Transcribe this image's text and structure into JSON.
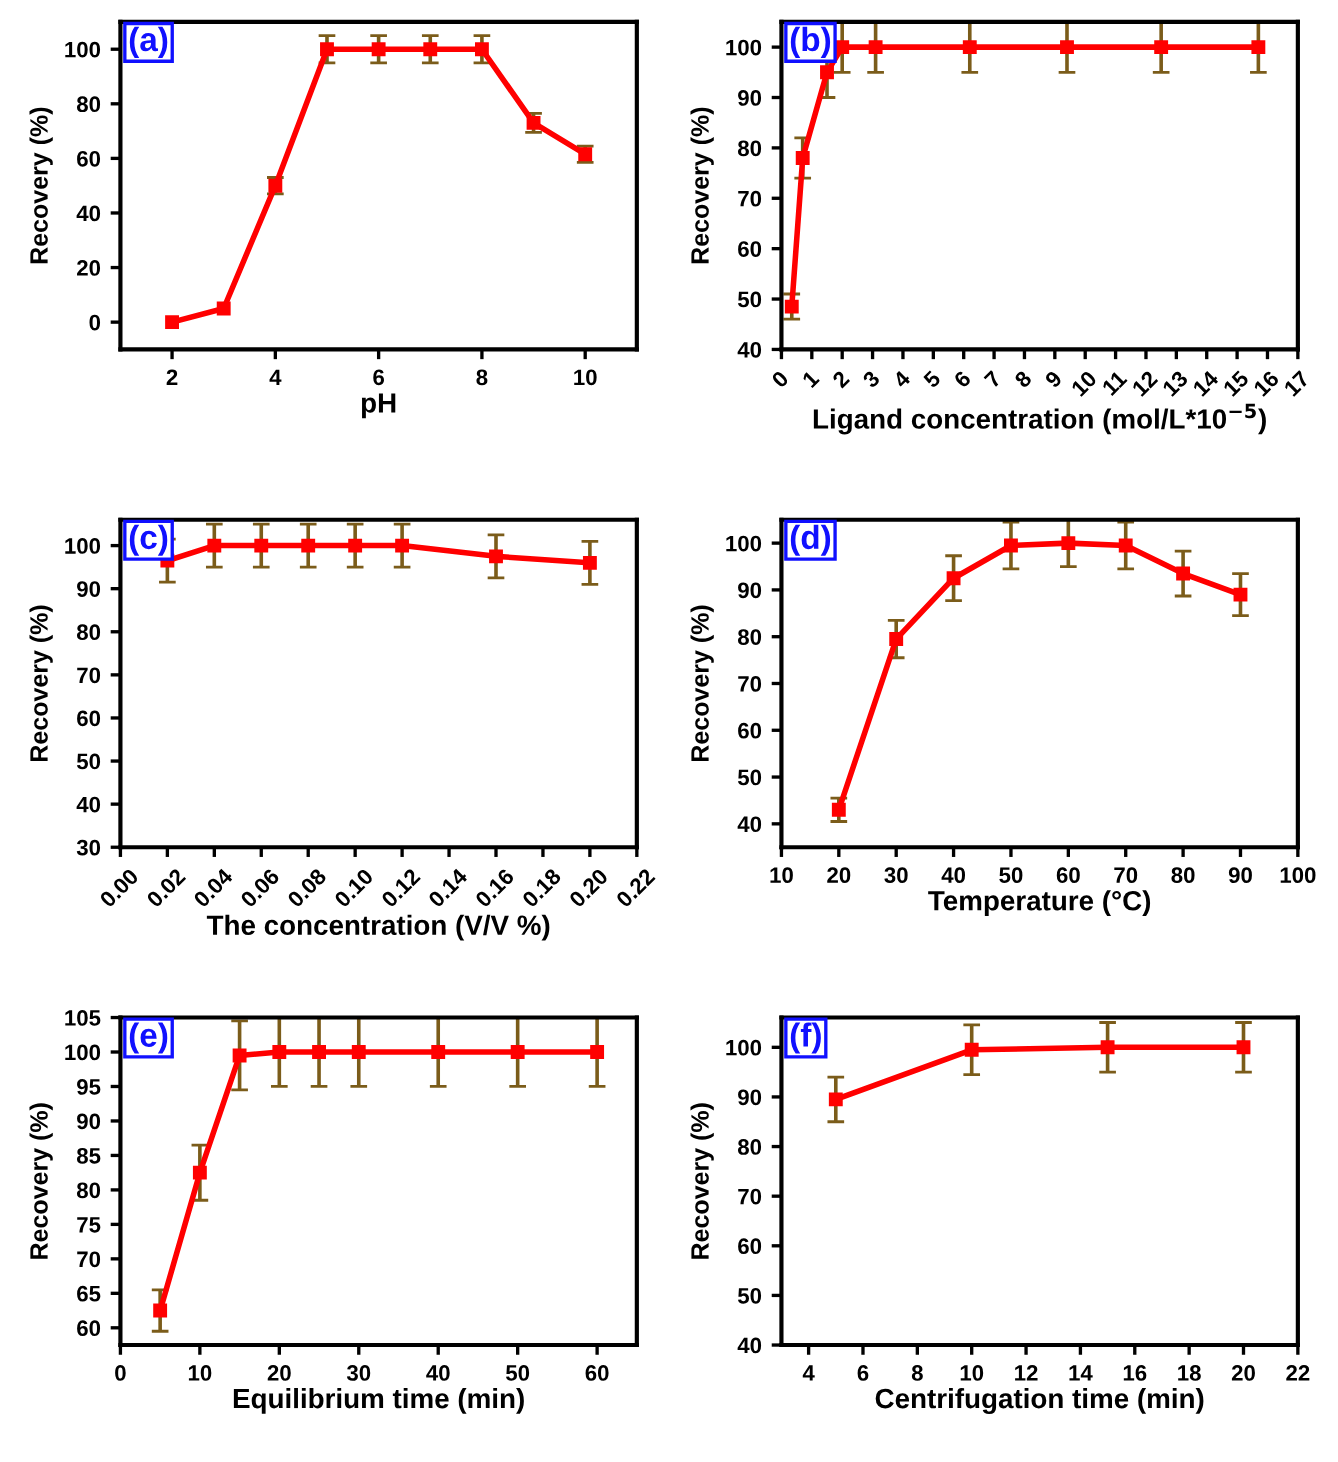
{
  "chart_data": [
    {
      "type": "line",
      "title": "(a)",
      "xlabel": "pH",
      "ylabel": "Recovery (%)",
      "x": [
        2,
        3,
        4,
        5,
        6,
        7,
        8,
        9,
        10
      ],
      "series": [
        {
          "color": "#ff0000",
          "values": [
            0,
            5,
            50,
            100,
            100,
            100,
            100,
            73,
            61.5
          ],
          "errors": [
            null,
            null,
            3,
            5,
            5,
            5,
            5,
            3.5,
            3
          ]
        }
      ],
      "xlim": [
        1,
        11
      ],
      "xticks": [
        2,
        4,
        6,
        8,
        10
      ],
      "ylim": [
        -10,
        110
      ],
      "yticks": [
        0,
        20,
        40,
        60,
        80,
        100
      ],
      "marker": "square",
      "line_style": "solid",
      "grid": false,
      "legend": false
    },
    {
      "type": "line",
      "title": "(b)",
      "xlabel": "Ligand concentration (mol/L*10$^{−5}$)",
      "ylabel": "Recovery (%)",
      "x": [
        0.34,
        0.7,
        1.5,
        2.0,
        3.1,
        6.2,
        9.4,
        12.5,
        15.7
      ],
      "series": [
        {
          "color": "#ff0000",
          "values": [
            48.5,
            78,
            95,
            100,
            100,
            100,
            100,
            100,
            100
          ],
          "errors": [
            2.5,
            4,
            5,
            5,
            5,
            5,
            5,
            5,
            5
          ]
        }
      ],
      "xlim": [
        0,
        17
      ],
      "xticks": [
        0,
        1,
        2,
        3,
        4,
        5,
        6,
        7,
        8,
        9,
        10,
        11,
        12,
        13,
        14,
        15,
        16,
        17
      ],
      "ylim": [
        40,
        105
      ],
      "yticks": [
        40,
        50,
        60,
        70,
        80,
        90,
        100
      ],
      "marker": "square",
      "line_style": "solid",
      "grid": false,
      "legend": false
    },
    {
      "type": "line",
      "title": "(c)",
      "xlabel": "The concentration (V/V %)",
      "ylabel": "Recovery (%)",
      "x": [
        0.02,
        0.04,
        0.06,
        0.08,
        0.1,
        0.12,
        0.16,
        0.2
      ],
      "series": [
        {
          "color": "#ff0000",
          "values": [
            96.5,
            100,
            100,
            100,
            100,
            100,
            97.5,
            96
          ],
          "errors": [
            5,
            5,
            5,
            5,
            5,
            5,
            5,
            5
          ]
        }
      ],
      "xlim": [
        0,
        0.22
      ],
      "xticks": [
        {
          "value": 0,
          "label": "0.00"
        },
        0.02,
        0.04,
        0.06,
        0.08,
        {
          "value": 0.1,
          "label": "0.10"
        },
        0.12,
        0.14,
        0.16,
        0.18,
        {
          "value": 0.2,
          "label": "0.20"
        },
        0.22
      ],
      "ylim": [
        30,
        106
      ],
      "yticks": [
        30,
        40,
        50,
        60,
        70,
        80,
        90,
        100
      ],
      "marker": "square",
      "line_style": "solid",
      "grid": false,
      "legend": false
    },
    {
      "type": "line",
      "title": "(d)",
      "xlabel": "Temperature (°C)",
      "ylabel": "Recovery (%)",
      "x": [
        20,
        30,
        40,
        50,
        60,
        70,
        80,
        90
      ],
      "series": [
        {
          "color": "#ff0000",
          "values": [
            43,
            79.5,
            92.5,
            99.5,
            100,
            99.5,
            93.5,
            89
          ],
          "errors": [
            2.5,
            4,
            4.8,
            5,
            5,
            5,
            4.8,
            4.5
          ]
        }
      ],
      "xlim": [
        10,
        100
      ],
      "xticks": [
        10,
        20,
        30,
        40,
        50,
        60,
        70,
        80,
        90,
        100
      ],
      "ylim": [
        35,
        105
      ],
      "yticks": [
        40,
        50,
        60,
        70,
        80,
        90,
        100
      ],
      "marker": "square",
      "line_style": "solid",
      "grid": false,
      "legend": false
    },
    {
      "type": "line",
      "title": "(e)",
      "xlabel": "Equilibrium time (min)",
      "ylabel": "Recovery (%)",
      "x": [
        5,
        10,
        15,
        20,
        25,
        30,
        40,
        50,
        60
      ],
      "series": [
        {
          "color": "#ff0000",
          "values": [
            62.5,
            82.5,
            99.5,
            100,
            100,
            100,
            100,
            100,
            100
          ],
          "errors": [
            3,
            4,
            5,
            5,
            5,
            5,
            5,
            5,
            5
          ]
        }
      ],
      "xlim": [
        0,
        65
      ],
      "xticks": [
        0,
        10,
        20,
        30,
        40,
        50,
        60
      ],
      "ylim": [
        57.5,
        105
      ],
      "yticks": [
        60,
        65,
        70,
        75,
        80,
        85,
        90,
        95,
        100,
        105
      ],
      "marker": "square",
      "line_style": "solid",
      "grid": false,
      "legend": false
    },
    {
      "type": "line",
      "title": "(f)",
      "xlabel": "Centrifugation time (min)",
      "ylabel": "Recovery (%)",
      "x": [
        5,
        10,
        15,
        20
      ],
      "series": [
        {
          "color": "#ff0000",
          "values": [
            89.5,
            99.5,
            100,
            100
          ],
          "errors": [
            4.5,
            5,
            5,
            5
          ]
        }
      ],
      "xlim": [
        3,
        22
      ],
      "xticks": [
        4,
        6,
        8,
        10,
        12,
        14,
        16,
        18,
        20,
        22
      ],
      "ylim": [
        40,
        106
      ],
      "yticks": [
        40,
        50,
        60,
        70,
        80,
        90,
        100
      ],
      "marker": "square",
      "line_style": "solid",
      "grid": false,
      "legend": false
    }
  ]
}
